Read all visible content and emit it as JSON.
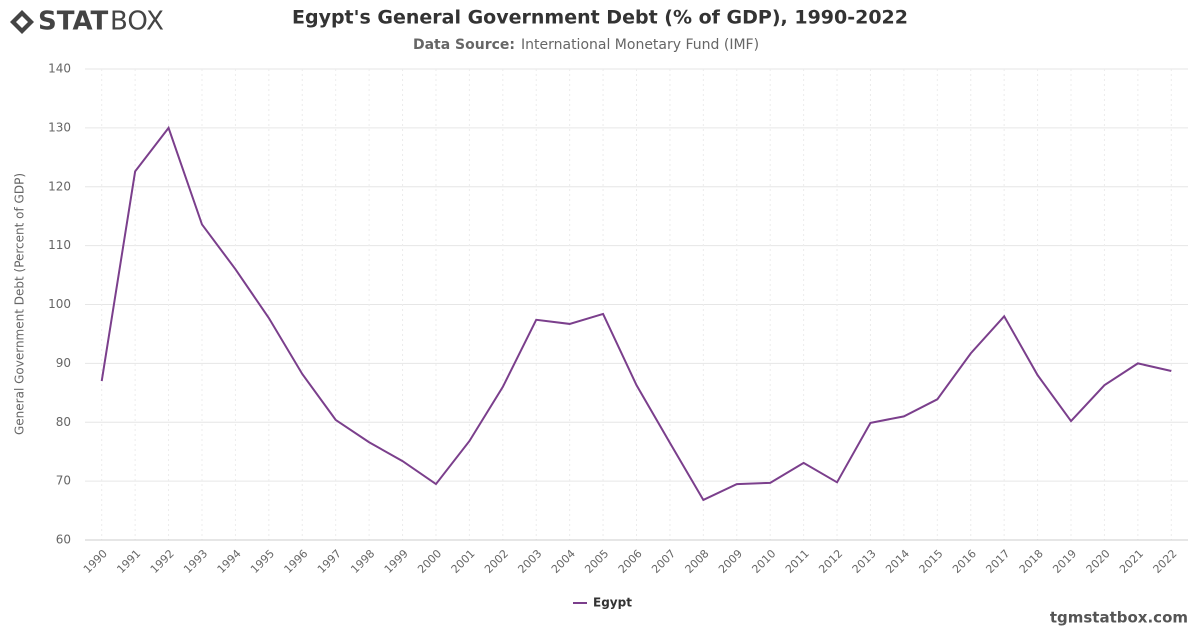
{
  "logo": {
    "bold": "STAT",
    "light": "BOX"
  },
  "footer": "tgmstatbox.com",
  "chart_data": {
    "type": "line",
    "title": "Egypt's General Government Debt (% of GDP), 1990-2022",
    "source_label": "Data Source:",
    "source": "International Monetary Fund (IMF)",
    "y_label": "General Government Debt (Percent of GDP)",
    "categories": [
      "1990",
      "1991",
      "1992",
      "1993",
      "1994",
      "1995",
      "1996",
      "1997",
      "1998",
      "1999",
      "2000",
      "2001",
      "2002",
      "2003",
      "2004",
      "2005",
      "2006",
      "2007",
      "2008",
      "2009",
      "2010",
      "2011",
      "2012",
      "2013",
      "2014",
      "2015",
      "2016",
      "2017",
      "2018",
      "2019",
      "2020",
      "2021",
      "2022"
    ],
    "series": [
      {
        "name": "Egypt",
        "color": "#7b3f8c",
        "values": [
          87.0,
          122.6,
          130.0,
          113.6,
          106.0,
          97.7,
          88.2,
          80.4,
          76.6,
          73.4,
          69.5,
          76.8,
          86.0,
          97.4,
          96.7,
          98.4,
          86.3,
          76.5,
          66.8,
          69.5,
          69.7,
          73.1,
          69.8,
          79.9,
          81.0,
          83.9,
          91.7,
          98.0,
          88.0,
          80.2,
          86.3,
          90.0,
          88.7
        ]
      }
    ],
    "ylim": [
      60,
      140
    ],
    "yticks": [
      60,
      70,
      80,
      90,
      100,
      110,
      120,
      130,
      140
    ],
    "grid": true,
    "legend": "bottom"
  }
}
